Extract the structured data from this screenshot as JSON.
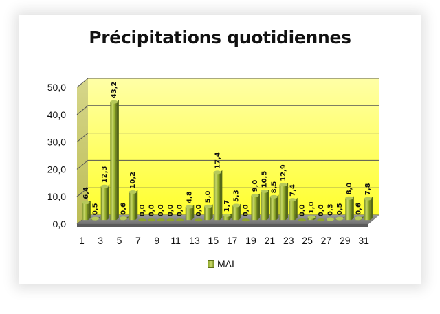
{
  "chart_data": {
    "type": "bar",
    "title": "Précipitations quotidiennes",
    "xlabel": "",
    "ylabel": "",
    "ylim": [
      0,
      50
    ],
    "yticks": [
      "0,0",
      "10,0",
      "20,0",
      "30,0",
      "40,0",
      "50,0"
    ],
    "xtick_labels": [
      "1",
      "3",
      "5",
      "7",
      "9",
      "11",
      "13",
      "15",
      "17",
      "19",
      "21",
      "23",
      "25",
      "27",
      "29",
      "31"
    ],
    "categories": [
      "1",
      "2",
      "3",
      "4",
      "5",
      "6",
      "7",
      "8",
      "9",
      "10",
      "11",
      "12",
      "13",
      "14",
      "15",
      "16",
      "17",
      "18",
      "19",
      "20",
      "21",
      "22",
      "23",
      "24",
      "25",
      "26",
      "27",
      "28",
      "29",
      "30",
      "31"
    ],
    "series": [
      {
        "name": "MAI",
        "values": [
          6.4,
          0.5,
          12.3,
          43.2,
          0.6,
          10.2,
          0.0,
          0.0,
          0.0,
          0.0,
          0.0,
          4.8,
          0.0,
          5.0,
          17.4,
          1.7,
          5.3,
          0.0,
          9.0,
          10.5,
          8.5,
          12.9,
          7.4,
          0.0,
          1.0,
          0.0,
          0.3,
          0.5,
          8.0,
          0.6,
          7.8
        ],
        "labels": [
          "6,4",
          "0,5",
          "12,3",
          "43,2",
          "0,6",
          "10,2",
          "0,0",
          "0,0",
          "0,0",
          "0,0",
          "0,0",
          "4,8",
          "0,0",
          "5,0",
          "17,4",
          "1,7",
          "5,3",
          "0,0",
          "9,0",
          "10,5",
          "8,5",
          "12,9",
          "7,4",
          "0,0",
          "1,0",
          "0,0",
          "0,3",
          "0,5",
          "8,0",
          "0,6",
          "7,8"
        ]
      }
    ],
    "grid": true,
    "legend_position": "bottom",
    "colors": {
      "wall_top": "#ffff99",
      "wall_bottom": "#ffff33",
      "floor": "#8a8a8a",
      "bar_light": "#c8d86a",
      "bar_mid": "#9ab32f",
      "bar_dark": "#6e8420",
      "gridline": "#555555"
    }
  },
  "legend": {
    "label": "MAI"
  }
}
